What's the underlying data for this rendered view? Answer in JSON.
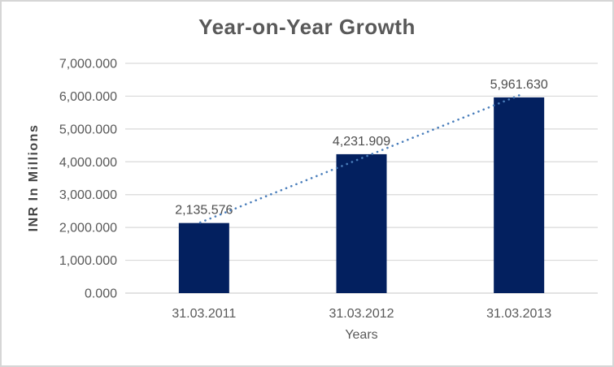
{
  "chart_data": {
    "type": "bar",
    "title": "Year-on-Year Growth",
    "categories": [
      "31.03.2011",
      "31.03.2012",
      "31.03.2013"
    ],
    "values": [
      2135.576,
      4231.909,
      5961.63
    ],
    "data_labels": [
      "2,135.576",
      "4,231.909",
      "5,961.630"
    ],
    "xlabel": "Years",
    "ylabel": "INR In Millions",
    "ylim": [
      0,
      7000
    ],
    "ytick_step": 1000,
    "ytick_labels": [
      "0.000",
      "1,000.000",
      "2,000.000",
      "3,000.000",
      "4,000.000",
      "5,000.000",
      "6,000.000",
      "7,000.000"
    ],
    "grid": true,
    "legend": false,
    "trendline": {
      "type": "linear",
      "style": "dotted",
      "color": "#4A7EBB"
    },
    "colors": {
      "bar": "#03205F",
      "gridline": "#D9D9D9",
      "axis_line": "#D0D0D0",
      "axis_text": "#595959",
      "title_text": "#595959",
      "frame_border": "#D6D6D6",
      "background": "#FFFFFF"
    }
  }
}
